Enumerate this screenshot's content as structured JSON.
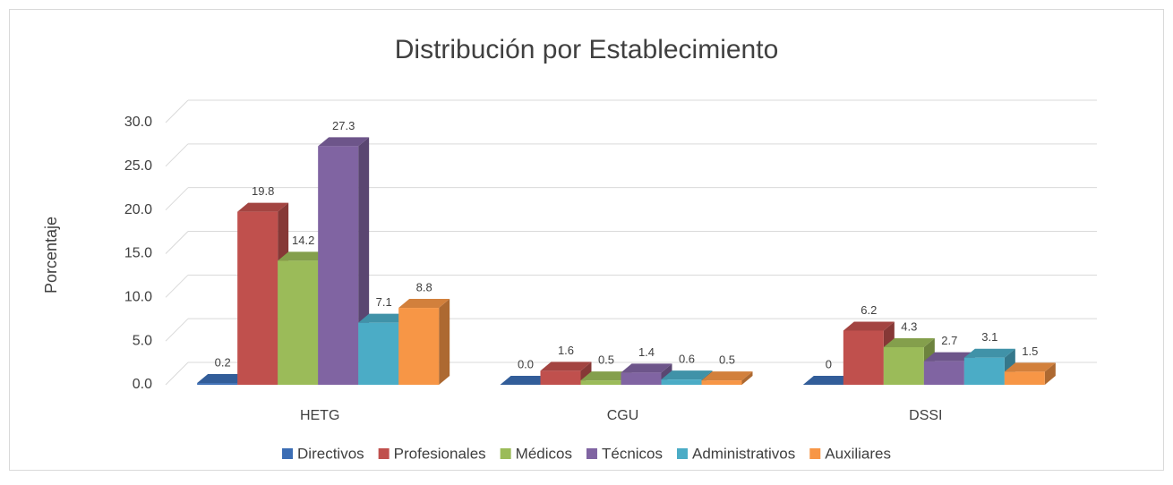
{
  "chart_data": {
    "type": "bar3d",
    "title": "Distribución por Establecimiento",
    "y_label": "Porcentaje",
    "categories": [
      "HETG",
      "CGU",
      "DSSI"
    ],
    "series": [
      {
        "name": "Directivos",
        "color": "#3b6db4",
        "values": [
          0.2,
          0.0,
          0
        ],
        "value_labels": [
          "0.2",
          "0.0",
          "0"
        ]
      },
      {
        "name": "Profesionales",
        "color": "#c0504d",
        "values": [
          19.8,
          1.6,
          6.2
        ],
        "value_labels": [
          "19.8",
          "1.6",
          "6.2"
        ]
      },
      {
        "name": "Médicos",
        "color": "#9bbb59",
        "values": [
          14.2,
          0.5,
          4.3
        ],
        "value_labels": [
          "14.2",
          "0.5",
          "4.3"
        ]
      },
      {
        "name": "Técnicos",
        "color": "#8064a2",
        "values": [
          27.3,
          1.4,
          2.7
        ],
        "value_labels": [
          "27.3",
          "1.4",
          "2.7"
        ]
      },
      {
        "name": "Administrativos",
        "color": "#4bacc6",
        "values": [
          7.1,
          0.6,
          3.1
        ],
        "value_labels": [
          "7.1",
          "0.6",
          "3.1"
        ]
      },
      {
        "name": "Auxiliares",
        "color": "#f79646",
        "values": [
          8.8,
          0.5,
          1.5
        ],
        "value_labels": [
          "8.8",
          "0.5",
          "1.5"
        ]
      }
    ],
    "ylim": [
      0,
      30
    ],
    "yticks": [
      {
        "value": 0,
        "label": "0.0"
      },
      {
        "value": 5,
        "label": "5.0"
      },
      {
        "value": 10,
        "label": "10.0"
      },
      {
        "value": 15,
        "label": "15.0"
      },
      {
        "value": 20,
        "label": "20.0"
      },
      {
        "value": 25,
        "label": "25.0"
      },
      {
        "value": 30,
        "label": "30.0"
      }
    ],
    "grid": true,
    "legend": "bottom"
  }
}
